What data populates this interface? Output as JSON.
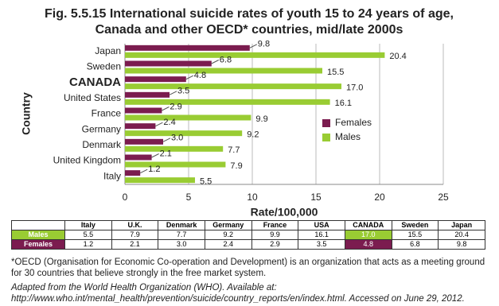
{
  "chart_data": {
    "type": "hbar",
    "title": [
      "Fig. 5.5.15  International suicide rates of youth 15 to 24 years of age,",
      "Canada and other OECD* countries, mid/late 2000s"
    ],
    "x_label": "Rate/100,000",
    "y_label": "Country",
    "categories": [
      "Japan",
      "Sweden",
      "CANADA",
      "United States",
      "France",
      "Germany",
      "Denmark",
      "United Kingdom",
      "Italy"
    ],
    "highlight_index": 2,
    "series": [
      {
        "name": "Females",
        "color": "#7b1c4f",
        "values": [
          9.8,
          6.8,
          4.8,
          3.5,
          2.9,
          2.4,
          3.0,
          2.1,
          1.2
        ],
        "value_labels": [
          "9.8",
          "6.8",
          "4.8",
          "3.5",
          "2.9",
          "2.4",
          "3.0",
          "2.1",
          "1.2"
        ]
      },
      {
        "name": "Males",
        "color": "#99cc33",
        "values": [
          20.4,
          15.5,
          17.0,
          16.1,
          9.9,
          9.2,
          7.7,
          7.9,
          5.5
        ],
        "value_labels": [
          "20.4",
          "15.5",
          "17.0",
          "16.1",
          "9.9",
          "9.2",
          "7.7",
          "7.9",
          "5.5"
        ]
      }
    ],
    "xlim": [
      0,
      25
    ],
    "xticks": [
      0,
      5,
      10,
      15,
      20,
      25
    ],
    "grid": true,
    "legend": "right"
  },
  "table": {
    "header": [
      "Italy",
      "U.K.",
      "Denmark",
      "Germany",
      "France",
      "USA",
      "CANADA",
      "Sweden",
      "Japan"
    ],
    "rows": [
      {
        "label": "Males",
        "cells": [
          "5.5",
          "7.9",
          "7.7",
          "9.2",
          "9.9",
          "16.1",
          "17.0",
          "15.5",
          "20.4"
        ]
      },
      {
        "label": "Females",
        "cells": [
          "1.2",
          "2.1",
          "3.0",
          "2.4",
          "2.9",
          "3.5",
          "4.8",
          "6.8",
          "9.8"
        ]
      }
    ]
  },
  "footnote": "*OECD (Organisation for Economic Co-operation and Development) is an organization that acts as a meeting ground for 30 countries that believe strongly in the free market system.",
  "source": "Adapted from the World Health Organization (WHO). Available at: http://www.who.int/mental_health/prevention/suicide/country_reports/en/index.html. Accessed on June 29, 2012."
}
